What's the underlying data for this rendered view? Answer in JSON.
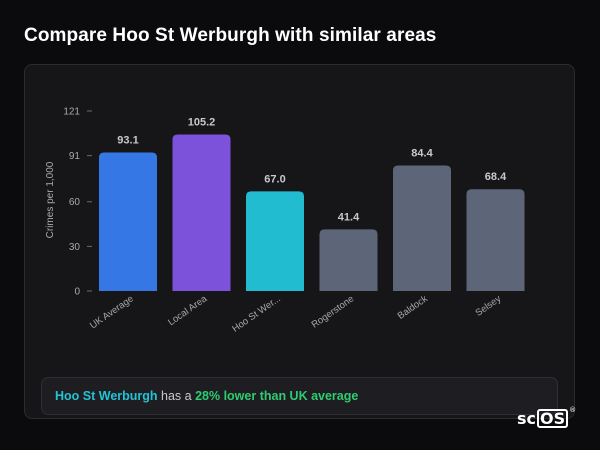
{
  "page": {
    "title": "Compare Hoo St Werburgh with similar areas"
  },
  "chart_data": {
    "type": "bar",
    "ylabel": "Crimes per 1,000",
    "xlabel": "",
    "ylim": [
      0,
      121
    ],
    "yticks": [
      0,
      30,
      60,
      91,
      121
    ],
    "categories": [
      "UK Average",
      "Local Area",
      "Hoo St Wer...",
      "Rogerstone",
      "Baldock",
      "Selsey"
    ],
    "values": [
      93.1,
      105.2,
      67.0,
      41.4,
      84.4,
      68.4
    ],
    "value_labels": [
      "93.1",
      "105.2",
      "67.0",
      "41.4",
      "84.4",
      "68.4"
    ],
    "colors": [
      "#3578e5",
      "#7b52d9",
      "#22bcd1",
      "#5c6678",
      "#5c6678",
      "#5c6678"
    ],
    "grid": false,
    "legend": "none"
  },
  "summary": {
    "area": "Hoo St Werburgh",
    "middle": " has a ",
    "difference": "28% lower than UK average"
  },
  "logo": {
    "prefix": "sc",
    "boxed": "OS",
    "mark": "®"
  }
}
